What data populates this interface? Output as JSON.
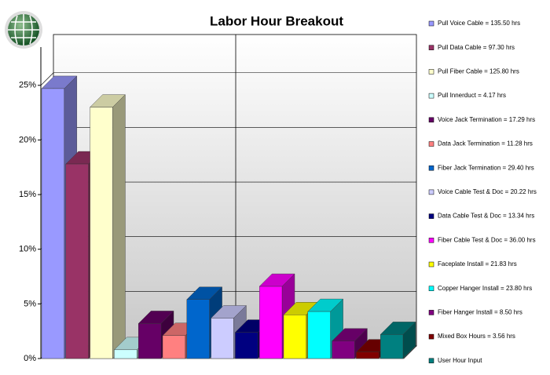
{
  "chart_data": {
    "type": "bar3d",
    "title": "Labor Hour Breakout",
    "categories": [
      "Pull Voice Cable = 135.50 hrs",
      "Pull Data Cable = 97.30 hrs",
      "Pull Fiber Cable = 125.80 hrs",
      "Pull Innerduct = 4.17 hrs",
      "Voice Jack Termination = 17.29 hrs",
      "Data Jack Termination = 11.28 hrs",
      "Fiber Jack Termination = 29.40 hrs",
      "Voice Cable Test & Doc = 20.22 hrs",
      "Data Cable Test & Doc = 13.34 hrs",
      "Fiber Cable Test & Doc = 36.00 hrs",
      "Faceplate Install = 21.83 hrs",
      "Copper Hanger Install = 23.80 hrs",
      "Fiber Hanger Install = 8.50 hrs",
      "Mixed Box Hours = 3.56 hrs",
      "User Hour Input"
    ],
    "values": [
      24.7,
      17.8,
      23.0,
      0.8,
      3.2,
      2.1,
      5.4,
      3.7,
      2.4,
      6.6,
      4.0,
      4.3,
      1.6,
      0.6,
      2.2
    ],
    "colors": [
      "#9999ff",
      "#993366",
      "#ffffcc",
      "#ccffff",
      "#660066",
      "#ff8080",
      "#0066cc",
      "#ccccff",
      "#000080",
      "#ff00ff",
      "#ffff00",
      "#00ffff",
      "#800080",
      "#800000",
      "#008080"
    ],
    "ylim": [
      0,
      28.5
    ],
    "yticks": [
      {
        "value": 0,
        "label": "0%"
      },
      {
        "value": 5,
        "label": "5%"
      },
      {
        "value": 10,
        "label": "10%"
      },
      {
        "value": 15,
        "label": "15%"
      },
      {
        "value": 20,
        "label": "20%"
      },
      {
        "value": 25,
        "label": "25%"
      }
    ],
    "grid": true,
    "legend": "right"
  }
}
